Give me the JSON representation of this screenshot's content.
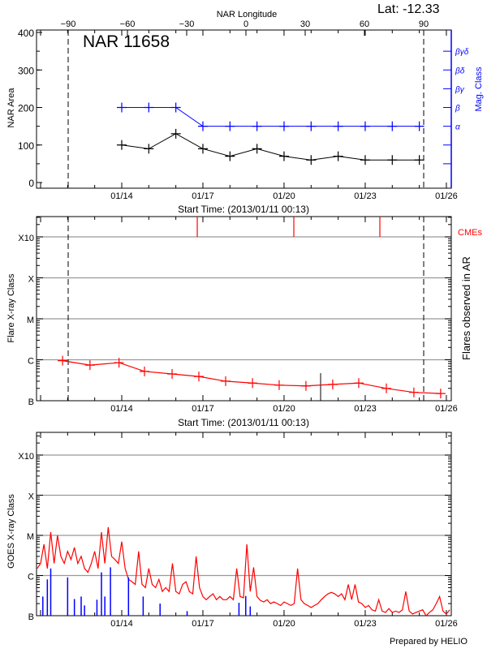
{
  "header": {
    "latitude_label": "Lat: -12.33",
    "footer": "Prepared by HELIO"
  },
  "colors": {
    "area": "#000000",
    "mag": "#0000ff",
    "flare": "#ff0000",
    "cme": "#ff0000",
    "goes_long": "#ff0000",
    "goes_short": "#0000ff",
    "grid": "#999999"
  },
  "chart_data": [
    {
      "type": "line",
      "title": "NAR 11658",
      "top_axis_label": "NAR Longitude",
      "top_ticks": [
        -90,
        -60,
        -30,
        0,
        30,
        60,
        90
      ],
      "xlabel": "Start Time: (2013/01/11 00:13)",
      "xticks": [
        "01/14",
        "01/17",
        "01/20",
        "01/23",
        "01/26"
      ],
      "ylabel": "NAR Area",
      "ylim": [
        0,
        400
      ],
      "yticks": [
        0,
        100,
        200,
        300,
        400
      ],
      "y2label": "Mag. Class",
      "y2ticks": [
        "α",
        "β",
        "βγ",
        "βδ",
        "βγδ"
      ],
      "limb_longitudes": [
        -90,
        90
      ],
      "x": [
        "2013-01-14T00:00",
        "2013-01-15T00:00",
        "2013-01-16T00:00",
        "2013-01-17T00:00",
        "2013-01-18T00:00",
        "2013-01-19T00:00",
        "2013-01-20T00:00",
        "2013-01-21T00:00",
        "2013-01-22T00:00",
        "2013-01-23T00:00",
        "2013-01-24T00:00",
        "2013-01-25T00:00"
      ],
      "series": [
        {
          "axis": "left",
          "values": [
            100,
            90,
            130,
            90,
            70,
            90,
            70,
            60,
            70,
            60,
            60,
            60
          ]
        },
        {
          "axis": "right",
          "values": [
            "β",
            "β",
            "β",
            "α",
            "α",
            "α",
            "α",
            "α",
            "α",
            "α",
            "α",
            "α"
          ]
        }
      ]
    },
    {
      "type": "line",
      "xlabel": "Start Time: (2013/01/11 00:13)",
      "xticks": [
        "01/14",
        "01/17",
        "01/20",
        "01/23",
        "01/26"
      ],
      "ylabel": "Flare X-ray Class",
      "y2label": "Flares observed in AR",
      "yscale": "log",
      "yticks": [
        "B",
        "C",
        "M",
        "X",
        "X10"
      ],
      "cme_label": "CMEs",
      "cmes": [
        "2013-01-16T19:00",
        "2013-01-20T08:40",
        "2013-01-23T13:00"
      ],
      "flares_observed": [
        {
          "time": "2013-01-21T08:25",
          "flux": 4.7e-07
        }
      ],
      "x": [
        "2013-01-11T19:30",
        "2013-01-12T19:50",
        "2013-01-13T21:35",
        "2013-01-14T20:10",
        "2013-01-15T20:40",
        "2013-01-16T20:25",
        "2013-01-17T20:10",
        "2013-01-18T20:00",
        "2013-01-19T19:40",
        "2013-01-20T19:25",
        "2013-01-21T19:10",
        "2013-01-22T18:15",
        "2013-01-23T18:45",
        "2013-01-24T19:10",
        "2013-01-25T18:55"
      ],
      "values": [
        9.5e-07,
        7.4e-07,
        8.5e-07,
        5.2e-07,
        4.5e-07,
        3.9e-07,
        3e-07,
        2.7e-07,
        2.4e-07,
        2.3e-07,
        2.5e-07,
        2.7e-07,
        2e-07,
        1.6e-07,
        1.5e-07
      ]
    },
    {
      "type": "line",
      "xticks": [
        "01/14",
        "01/17",
        "01/20",
        "01/23",
        "01/26"
      ],
      "ylabel": "GOES X-ray Class",
      "yscale": "log",
      "yticks": [
        "B",
        "C",
        "M",
        "X",
        "X10"
      ],
      "series": [
        {
          "channel": "long",
          "start": "2013-01-10T21:00",
          "step_hours": 3,
          "values": [
            1.5e-06,
            2e-06,
            6e-06,
            1.5e-06,
            1.2e-05,
            2e-06,
            1e-05,
            3e-06,
            2e-06,
            4e-06,
            2.5e-06,
            5e-06,
            2e-06,
            3e-06,
            1.5e-06,
            1.2e-06,
            2e-06,
            4e-06,
            1.5e-06,
            1.2e-05,
            2e-06,
            1.6e-05,
            3e-06,
            2.5e-06,
            2e-06,
            7e-06,
            1.5e-06,
            8e-07,
            7e-07,
            6e-07,
            4e-06,
            6e-07,
            5e-07,
            1.5e-06,
            6e-07,
            5e-07,
            8e-07,
            4e-07,
            5e-07,
            4e-07,
            2e-06,
            4e-07,
            3.5e-07,
            6e-07,
            7e-07,
            4e-07,
            3.5e-07,
            3e-06,
            5e-07,
            3e-07,
            2.5e-07,
            3e-07,
            3.5e-07,
            2.5e-07,
            3e-07,
            2.5e-07,
            2.5e-07,
            3e-07,
            2.5e-07,
            1.5e-06,
            3e-07,
            2.8e-07,
            6e-06,
            4e-07,
            1.6e-06,
            3e-07,
            2.4e-07,
            2.2e-07,
            2.5e-07,
            2e-07,
            2.2e-07,
            2e-07,
            1.8e-07,
            2.2e-07,
            2e-07,
            1.8e-07,
            2e-07,
            1.5e-06,
            2.5e-07,
            2e-07,
            1.8e-07,
            1.6e-07,
            1.8e-07,
            2e-07,
            2.5e-07,
            3e-07,
            3.5e-07,
            3.8e-07,
            3.5e-07,
            3e-07,
            3.5e-07,
            2.5e-07,
            6e-07,
            2.5e-07,
            6e-07,
            2.2e-07,
            2e-07,
            1.6e-07,
            1.8e-07,
            1.4e-07,
            1.3e-07,
            2.5e-07,
            1.3e-07,
            1.2e-07,
            1.5e-07,
            1.2e-07,
            1.3e-07,
            1.2e-07,
            1.4e-07,
            4e-07,
            1.3e-07,
            1.1e-07,
            1.2e-07,
            1.3e-07,
            1.4e-07,
            1e-07,
            1.2e-07,
            1.4e-07,
            2e-07,
            3e-07,
            1.3e-07,
            1.1e-07,
            1.4e-07
          ]
        },
        {
          "channel": "short",
          "spikes": [
            {
              "time": "2013-01-11T02:00",
              "flux": 3e-07
            },
            {
              "time": "2013-01-11T06:00",
              "flux": 8e-07
            },
            {
              "time": "2013-01-11T09:00",
              "flux": 1.5e-06
            },
            {
              "time": "2013-01-12T00:00",
              "flux": 9e-07
            },
            {
              "time": "2013-01-12T06:00",
              "flux": 2.6e-07
            },
            {
              "time": "2013-01-12T12:00",
              "flux": 3e-07
            },
            {
              "time": "2013-01-12T15:00",
              "flux": 1.8e-07
            },
            {
              "time": "2013-01-13T02:00",
              "flux": 2.5e-07
            },
            {
              "time": "2013-01-13T06:00",
              "flux": 1.2e-06
            },
            {
              "time": "2013-01-13T09:00",
              "flux": 3e-07
            },
            {
              "time": "2013-01-13T14:00",
              "flux": 1.6e-06
            },
            {
              "time": "2013-01-14T06:00",
              "flux": 9e-07
            },
            {
              "time": "2013-01-14T19:00",
              "flux": 3e-07
            },
            {
              "time": "2013-01-15T10:00",
              "flux": 2e-07
            },
            {
              "time": "2013-01-16T10:00",
              "flux": 1.3e-07
            },
            {
              "time": "2013-01-18T08:00",
              "flux": 2.1e-07
            },
            {
              "time": "2013-01-18T14:00",
              "flux": 3.1e-07
            },
            {
              "time": "2013-01-18T18:00",
              "flux": 1.7e-07
            }
          ]
        }
      ]
    }
  ]
}
